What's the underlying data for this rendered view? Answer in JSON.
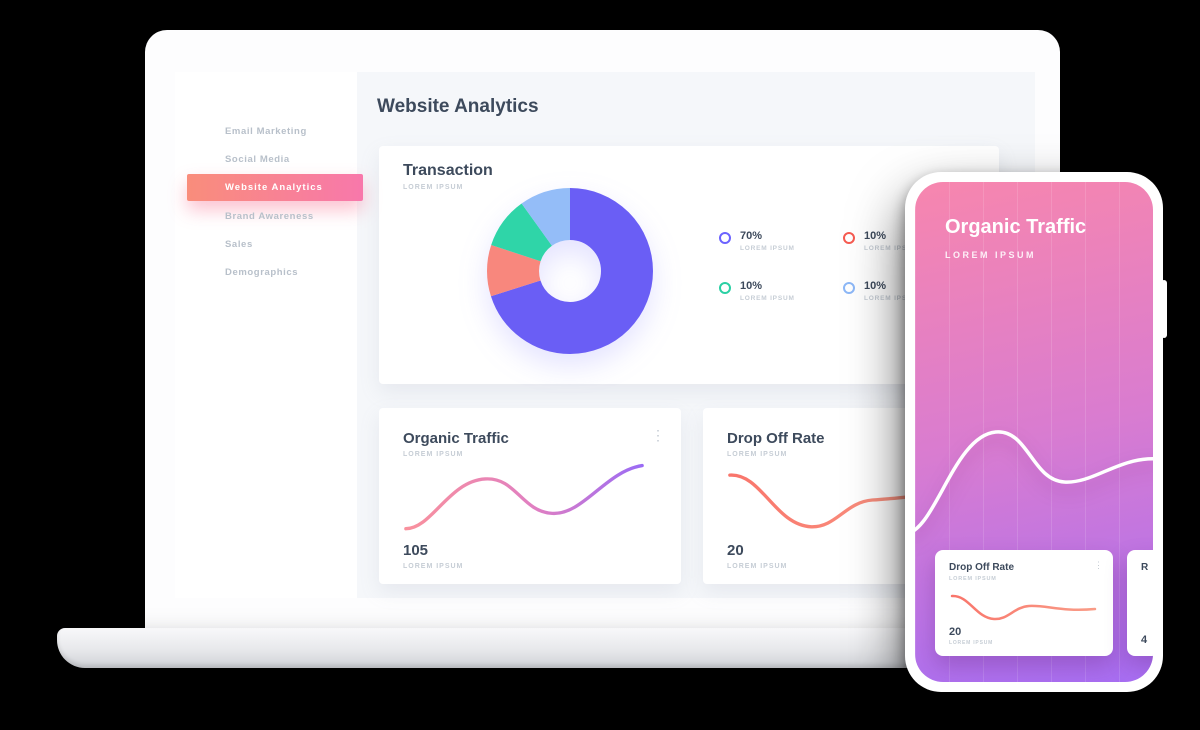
{
  "colors": {
    "purple": "#6c63ff",
    "coral": "#f9756b",
    "teal": "#2bd0a4",
    "light_blue": "#8db8f7",
    "text_dark": "#3d4a5c",
    "text_muted": "#b8c0ca",
    "sidebar_active_gradient": [
      "#f98d7b",
      "#f878ab"
    ],
    "phone_gradient": [
      "#f786ae",
      "#a76ef3"
    ]
  },
  "icons": {
    "kebab": "⋮"
  },
  "sidebar": {
    "items": [
      {
        "label": "Email Marketing",
        "active": false
      },
      {
        "label": "Social Media",
        "active": false
      },
      {
        "label": "Website Analytics",
        "active": true
      },
      {
        "label": "Brand Awareness",
        "active": false
      },
      {
        "label": "Sales",
        "active": false
      },
      {
        "label": "Demographics",
        "active": false
      }
    ]
  },
  "main": {
    "title": "Website Analytics"
  },
  "phone": {
    "partial_card": {
      "title": "R",
      "value": "4"
    }
  },
  "chart_data": [
    {
      "id": "transaction",
      "type": "pie",
      "title": "Transaction",
      "subtitle": "LOREM IPSUM",
      "legend_position": "right",
      "slices": [
        {
          "pct": "70%",
          "value": 70,
          "label": "LOREM IPSUM",
          "color": "#6a5ef5",
          "legend_color": "#6c63ff"
        },
        {
          "pct": "10%",
          "value": 10,
          "label": "LOREM IPSUM",
          "color": "#f8877d",
          "legend_color": "#f65b51"
        },
        {
          "pct": "10%",
          "value": 10,
          "label": "LOREM IPSUM",
          "color": "#2fd5a8",
          "legend_color": "#2bd0a4"
        },
        {
          "pct": "10%",
          "value": 10,
          "label": "LOREM IPSUM",
          "color": "#94bdf8",
          "legend_color": "#8db8f7"
        }
      ]
    },
    {
      "id": "organic-traffic",
      "type": "line",
      "title": "Organic Traffic",
      "subtitle": "LOREM IPSUM",
      "value": "105",
      "value_label": "LOREM IPSUM",
      "stroke_gradient": [
        "#f9919d",
        "#e07fc2",
        "#9a6bf5"
      ]
    },
    {
      "id": "drop-off-rate",
      "type": "line",
      "title": "Drop Off Rate",
      "subtitle": "LOREM IPSUM",
      "value": "20",
      "value_label": "LOREM IPSUM",
      "stroke_gradient": [
        "#f9756b",
        "#f99c87"
      ]
    },
    {
      "id": "phone-organic-traffic",
      "type": "line",
      "title": "Organic Traffic",
      "subtitle": "LOREM IPSUM",
      "stroke": "#ffffff"
    },
    {
      "id": "phone-drop-off-rate",
      "type": "line",
      "title": "Drop Off Rate",
      "subtitle": "LOREM IPSUM",
      "value": "20",
      "value_label": "LOREM IPSUM",
      "stroke_gradient": [
        "#f9756b",
        "#f99c87"
      ]
    }
  ]
}
